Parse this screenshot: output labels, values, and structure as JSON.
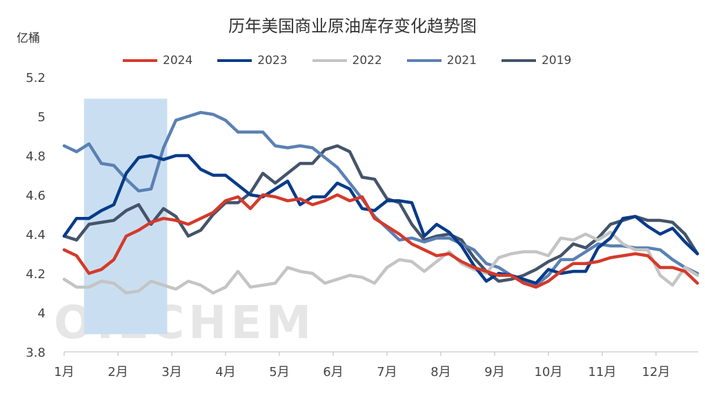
{
  "chart_data": {
    "type": "line",
    "title": "历年美国商业原油库存变化趋势图",
    "ylabel": "亿桶",
    "ylim": [
      3.8,
      5.2
    ],
    "yticks": [
      "3.8",
      "4",
      "4.2",
      "4.4",
      "4.6",
      "4.8",
      "5",
      "5.2"
    ],
    "xticks": [
      "1月",
      "2月",
      "3月",
      "4月",
      "5月",
      "6月",
      "7月",
      "8月",
      "9月",
      "10月",
      "11月",
      "12月"
    ],
    "grid": false,
    "legend": "top",
    "highlight_band_weeks": [
      2.6,
      9.3
    ],
    "highlight_color": "#c9dff1",
    "watermark": "OILCHEM",
    "series": [
      {
        "name": "2024",
        "color": "#d43a2a",
        "values": [
          4.32,
          4.29,
          4.2,
          4.22,
          4.27,
          4.39,
          4.42,
          4.46,
          4.48,
          4.47,
          4.45,
          4.48,
          4.51,
          4.57,
          4.59,
          4.53,
          4.6,
          4.59,
          4.57,
          4.58,
          4.55,
          4.57,
          4.6,
          4.57,
          4.59,
          4.48,
          4.44,
          4.4,
          4.35,
          4.32,
          4.29,
          4.3,
          4.26,
          4.23,
          4.21,
          4.19,
          4.19,
          4.15,
          4.13,
          4.16,
          4.21,
          4.25,
          4.25,
          4.26,
          4.28,
          4.29,
          4.3,
          4.29,
          4.23,
          4.23,
          4.21,
          4.15
        ]
      },
      {
        "name": "2023",
        "color": "#073b8a",
        "values": [
          4.39,
          4.48,
          4.48,
          4.52,
          4.55,
          4.71,
          4.79,
          4.8,
          4.78,
          4.8,
          4.8,
          4.73,
          4.7,
          4.7,
          4.65,
          4.6,
          4.59,
          4.63,
          4.67,
          4.55,
          4.59,
          4.59,
          4.66,
          4.63,
          4.53,
          4.52,
          4.57,
          4.57,
          4.56,
          4.39,
          4.45,
          4.41,
          4.34,
          4.24,
          4.16,
          4.2,
          4.19,
          4.17,
          4.15,
          4.22,
          4.2,
          4.21,
          4.21,
          4.33,
          4.38,
          4.48,
          4.49,
          4.44,
          4.4,
          4.43,
          4.36,
          4.3
        ]
      },
      {
        "name": "2022",
        "color": "#c4c4c4",
        "values": [
          4.17,
          4.13,
          4.13,
          4.16,
          4.15,
          4.1,
          4.11,
          4.16,
          4.14,
          4.12,
          4.16,
          4.14,
          4.1,
          4.13,
          4.21,
          4.13,
          4.14,
          4.15,
          4.23,
          4.21,
          4.2,
          4.15,
          4.17,
          4.19,
          4.18,
          4.15,
          4.23,
          4.27,
          4.26,
          4.21,
          4.26,
          4.31,
          4.25,
          4.22,
          4.2,
          4.28,
          4.3,
          4.31,
          4.31,
          4.29,
          4.38,
          4.37,
          4.4,
          4.37,
          4.41,
          4.35,
          4.32,
          4.32,
          4.19,
          4.14,
          4.23,
          4.19
        ]
      },
      {
        "name": "2021",
        "color": "#5b80b4",
        "values": [
          4.85,
          4.82,
          4.86,
          4.76,
          4.75,
          4.68,
          4.62,
          4.63,
          4.84,
          4.98,
          5.0,
          5.02,
          5.01,
          4.98,
          4.92,
          4.92,
          4.92,
          4.85,
          4.84,
          4.85,
          4.84,
          4.79,
          4.74,
          4.66,
          4.58,
          4.49,
          4.43,
          4.37,
          4.38,
          4.36,
          4.38,
          4.38,
          4.35,
          4.32,
          4.25,
          4.23,
          4.19,
          4.16,
          4.14,
          4.19,
          4.27,
          4.27,
          4.31,
          4.35,
          4.34,
          4.34,
          4.33,
          4.33,
          4.32,
          4.27,
          4.23,
          4.2
        ]
      },
      {
        "name": "2019",
        "color": "#44546a",
        "values": [
          4.39,
          4.37,
          4.45,
          4.46,
          4.47,
          4.52,
          4.55,
          4.45,
          4.53,
          4.49,
          4.39,
          4.42,
          4.5,
          4.56,
          4.56,
          4.61,
          4.71,
          4.66,
          4.71,
          4.76,
          4.76,
          4.83,
          4.85,
          4.82,
          4.69,
          4.68,
          4.58,
          4.56,
          4.45,
          4.37,
          4.39,
          4.4,
          4.37,
          4.28,
          4.21,
          4.16,
          4.17,
          4.19,
          4.22,
          4.26,
          4.29,
          4.35,
          4.33,
          4.38,
          4.45,
          4.47,
          4.49,
          4.47,
          4.47,
          4.46,
          4.4,
          4.3
        ]
      }
    ]
  }
}
